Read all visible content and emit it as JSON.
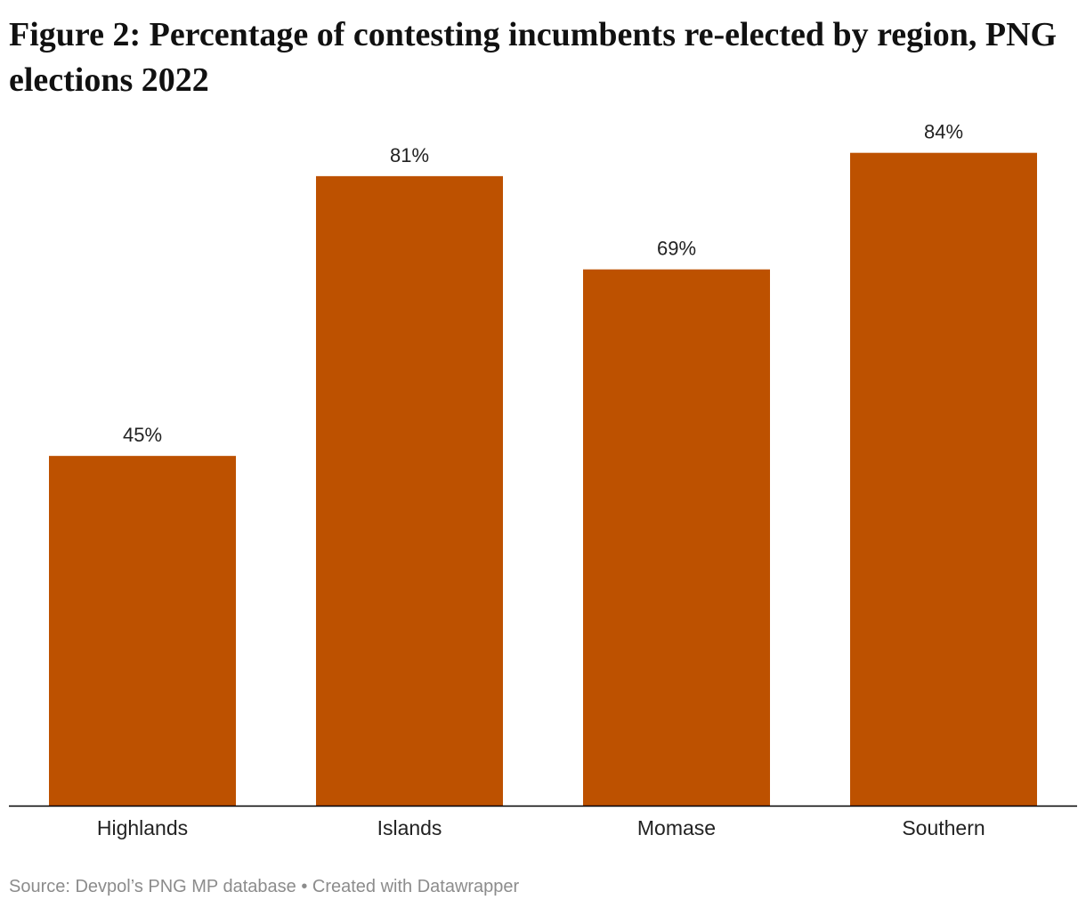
{
  "chart_data": {
    "type": "bar",
    "title": "Figure 2: Percentage of contesting incumbents re-elected by region, PNG elections 2022",
    "categories": [
      "Highlands",
      "Islands",
      "Momase",
      "Southern"
    ],
    "values": [
      45,
      81,
      69,
      84
    ],
    "value_labels": [
      "45%",
      "81%",
      "69%",
      "84%"
    ],
    "xlabel": "",
    "ylabel": "",
    "ylim": [
      0,
      100
    ],
    "grid": false,
    "bar_color": "#bd5100",
    "axis_color": "#000000"
  },
  "footer": {
    "source": "Source: Devpol’s PNG MP database • Created with Datawrapper"
  }
}
